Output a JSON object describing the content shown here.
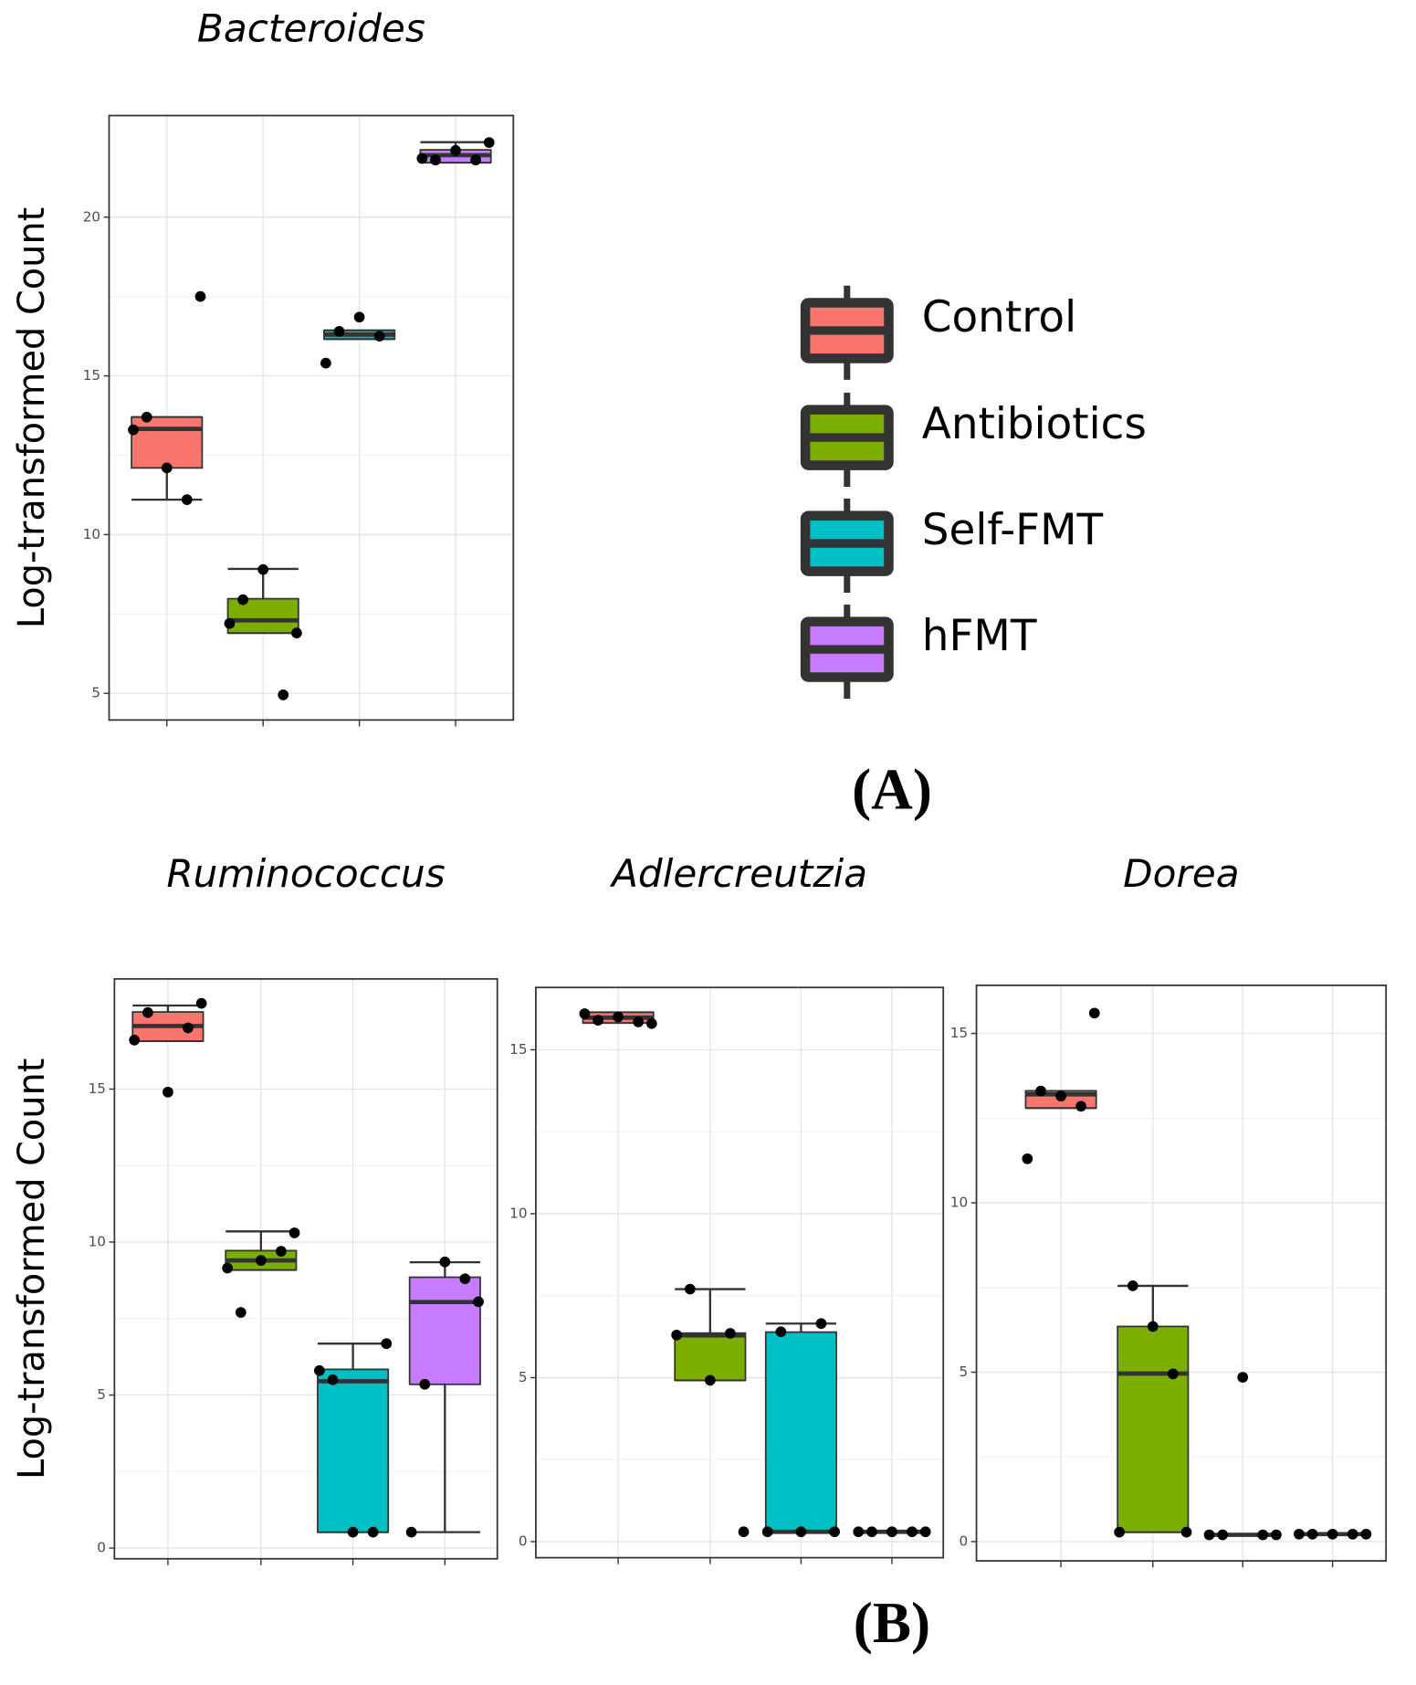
{
  "legend": [
    {
      "name": "Control",
      "color": "#f8766d"
    },
    {
      "name": "Antibiotics",
      "color": "#7cae00"
    },
    {
      "name": "Self-FMT",
      "color": "#00bfc4"
    },
    {
      "name": "hFMT",
      "color": "#c77cff"
    }
  ],
  "panel_labels": [
    "(A)",
    "(B)"
  ],
  "chart_data": [
    {
      "type": "box",
      "title": "Bacteroides",
      "y_label": "Log-transformed Count",
      "ylim": [
        4.16,
        23.2
      ],
      "yticks": [
        5,
        10,
        15,
        20
      ],
      "boxes": [
        {
          "q1": 12.1,
          "median": 13.33,
          "q3": 13.7,
          "whisker_low": 11.1,
          "whisker_high": 13.7,
          "points": [
            13.3,
            12.1,
            13.7,
            11.1,
            17.5
          ]
        },
        {
          "q1": 6.9,
          "median": 7.3,
          "q3": 7.98,
          "whisker_low": 6.9,
          "whisker_high": 8.92,
          "points": [
            7.2,
            8.9,
            7.95,
            4.95,
            6.9
          ]
        },
        {
          "q1": 16.16,
          "median": 16.3,
          "q3": 16.43,
          "whisker_low": 16.16,
          "whisker_high": 16.43,
          "points": [
            15.4,
            16.85,
            16.4,
            16.25
          ]
        },
        {
          "q1": 21.72,
          "median": 21.95,
          "q3": 22.12,
          "whisker_low": 21.72,
          "whisker_high": 22.36,
          "points": [
            21.85,
            22.1,
            21.8,
            21.8,
            22.35
          ]
        }
      ]
    },
    {
      "type": "box",
      "title": "Ruminococcus",
      "y_label": "Log-transformed Count",
      "ylim": [
        -0.35,
        18.6
      ],
      "yticks": [
        0,
        5,
        10,
        15
      ],
      "boxes": [
        {
          "q1": 16.57,
          "median": 17.06,
          "q3": 17.52,
          "whisker_low": 16.57,
          "whisker_high": 17.73,
          "points": [
            16.6,
            14.9,
            17.5,
            17.0,
            17.8
          ]
        },
        {
          "q1": 9.09,
          "median": 9.4,
          "q3": 9.72,
          "whisker_low": 9.09,
          "whisker_high": 10.35,
          "points": [
            9.15,
            9.4,
            7.7,
            9.7,
            10.3
          ]
        },
        {
          "q1": 0.52,
          "median": 5.45,
          "q3": 5.84,
          "whisker_low": 0.52,
          "whisker_high": 6.68,
          "points": [
            5.8,
            0.52,
            5.5,
            0.52,
            6.68
          ]
        },
        {
          "q1": 5.35,
          "median": 8.04,
          "q3": 8.85,
          "whisker_low": 0.52,
          "whisker_high": 9.34,
          "points": [
            0.52,
            9.35,
            5.35,
            8.8,
            8.05
          ]
        }
      ]
    },
    {
      "type": "box",
      "title": "Adlercreutzia",
      "ylim": [
        -0.49,
        16.9
      ],
      "yticks": [
        0,
        5,
        10,
        15
      ],
      "boxes": [
        {
          "q1": 15.82,
          "median": 15.98,
          "q3": 16.14,
          "whisker_low": 15.82,
          "whisker_high": 16.14,
          "points": [
            16.1,
            16.0,
            15.9,
            15.85,
            15.8
          ]
        },
        {
          "q1": 4.92,
          "median": 6.29,
          "q3": 6.36,
          "whisker_low": 4.92,
          "whisker_high": 7.7,
          "points": [
            6.3,
            4.92,
            7.7,
            6.35,
            0.3
          ]
        },
        {
          "q1": 0.3,
          "median": 0.3,
          "q3": 6.39,
          "whisker_low": 0.3,
          "whisker_high": 6.65,
          "points": [
            0.3,
            0.3,
            6.4,
            6.65,
            0.3
          ]
        },
        {
          "q1": 0.3,
          "median": 0.3,
          "q3": 0.3,
          "whisker_low": 0.3,
          "whisker_high": 0.3,
          "points": [
            0.3,
            0.3,
            0.3,
            0.3,
            0.3
          ]
        }
      ]
    },
    {
      "type": "box",
      "title": "Dorea",
      "ylim": [
        -0.57,
        16.42
      ],
      "yticks": [
        0,
        5,
        10,
        15
      ],
      "boxes": [
        {
          "q1": 12.8,
          "median": 13.2,
          "q3": 13.3,
          "whisker_low": 12.8,
          "whisker_high": 13.3,
          "points": [
            11.3,
            13.15,
            13.3,
            12.85,
            15.6
          ]
        },
        {
          "q1": 0.28,
          "median": 4.96,
          "q3": 6.35,
          "whisker_low": 0.28,
          "whisker_high": 7.55,
          "points": [
            0.28,
            6.35,
            7.55,
            4.95,
            0.28
          ]
        },
        {
          "q1": 0.2,
          "median": 0.2,
          "q3": 0.2,
          "whisker_low": 0.2,
          "whisker_high": 0.2,
          "points": [
            0.2,
            4.85,
            0.2,
            0.2,
            0.2
          ]
        },
        {
          "q1": 0.22,
          "median": 0.22,
          "q3": 0.22,
          "whisker_low": 0.22,
          "whisker_high": 0.22,
          "points": [
            0.22,
            0.22,
            0.22,
            0.22,
            0.22
          ]
        }
      ]
    }
  ]
}
